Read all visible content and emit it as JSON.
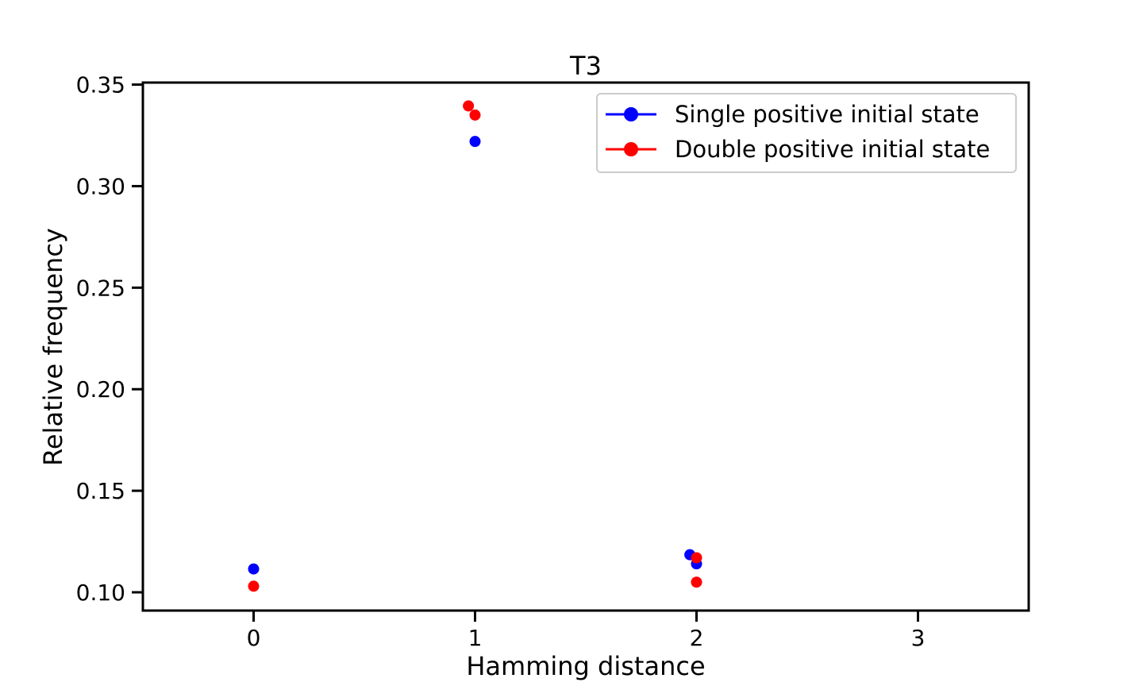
{
  "chart_data": {
    "type": "scatter",
    "title": "T3",
    "xlabel": "Hamming distance",
    "ylabel": "Relative frequency",
    "xlim": [
      -0.5,
      3.5
    ],
    "ylim": [
      0.091,
      0.351
    ],
    "xticks": [
      0,
      1,
      2,
      3
    ],
    "xtick_labels": [
      "0",
      "1",
      "2",
      "3"
    ],
    "yticks": [
      0.1,
      0.15,
      0.2,
      0.25,
      0.3,
      0.35
    ],
    "ytick_labels": [
      "0.10",
      "0.15",
      "0.20",
      "0.25",
      "0.30",
      "0.35"
    ],
    "grid": false,
    "legend_position": "upper-right",
    "series": [
      {
        "name": "Single positive initial state",
        "color": "#0000ff",
        "points": [
          {
            "x": 0.0,
            "y": 0.1115
          },
          {
            "x": 1.0,
            "y": 0.322
          },
          {
            "x": 1.97,
            "y": 0.1185
          },
          {
            "x": 2.0,
            "y": 0.114
          }
        ]
      },
      {
        "name": "Double positive initial state",
        "color": "#ff0000",
        "points": [
          {
            "x": 0.0,
            "y": 0.103
          },
          {
            "x": 0.97,
            "y": 0.3395
          },
          {
            "x": 1.0,
            "y": 0.335
          },
          {
            "x": 2.0,
            "y": 0.117
          },
          {
            "x": 2.0,
            "y": 0.105
          }
        ]
      }
    ]
  }
}
